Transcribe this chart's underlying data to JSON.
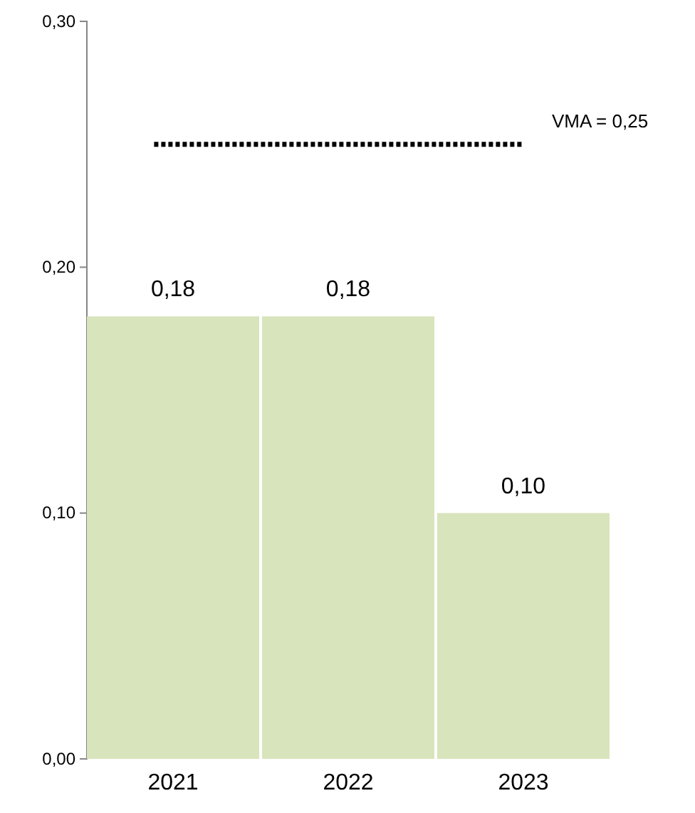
{
  "chart_data": {
    "type": "bar",
    "categories": [
      "2021",
      "2022",
      "2023"
    ],
    "values": [
      0.18,
      0.18,
      0.1
    ],
    "color": "#d8e4bc",
    "value_labels": [
      "0,18",
      "0,18",
      "0,10"
    ],
    "ylim": [
      0,
      0.3
    ],
    "yticks": [
      {
        "value": 0,
        "label": "0,00"
      },
      {
        "value": 0.1,
        "label": "0,10"
      },
      {
        "value": 0.2,
        "label": "0,20"
      },
      {
        "value": 0.3,
        "label": "0,30"
      }
    ],
    "ref_lines": [
      {
        "axis": "y",
        "value": 0.25,
        "label": "VMA = 0,25",
        "color": "#000000",
        "line_style": "dotted"
      }
    ],
    "grid": false
  }
}
